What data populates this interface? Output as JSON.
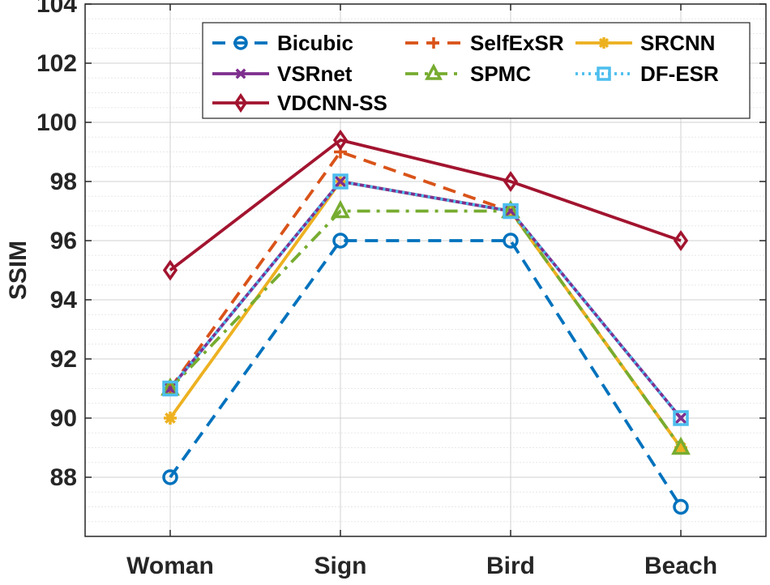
{
  "chart_data": {
    "type": "line",
    "title": "",
    "xlabel": "",
    "ylabel": "SSIM",
    "categories": [
      "Woman",
      "Sign",
      "Bird",
      "Beach"
    ],
    "ylim": [
      86,
      104
    ],
    "yticks": [
      88,
      90,
      92,
      94,
      96,
      98,
      100,
      102,
      104
    ],
    "grid": true,
    "legend_position": "top-right",
    "series": [
      {
        "name": "Bicubic",
        "values": [
          88,
          96,
          96,
          87
        ],
        "color": "#0072BD",
        "dash": "dashed",
        "marker": "circle"
      },
      {
        "name": "SelfExSR",
        "values": [
          91,
          99,
          97,
          89
        ],
        "color": "#D95319",
        "dash": "dashed",
        "marker": "plus"
      },
      {
        "name": "SRCNN",
        "values": [
          90,
          98,
          97,
          89
        ],
        "color": "#EDB120",
        "dash": "solid",
        "marker": "asterisk"
      },
      {
        "name": "VSRnet",
        "values": [
          91,
          98,
          97,
          90
        ],
        "color": "#7E2F8E",
        "dash": "solid",
        "marker": "x"
      },
      {
        "name": "SPMC",
        "values": [
          91,
          97,
          97,
          89
        ],
        "color": "#77AC30",
        "dash": "dashdot",
        "marker": "triangle"
      },
      {
        "name": "DF-ESR",
        "values": [
          91,
          98,
          97,
          90
        ],
        "color": "#4DBEEE",
        "dash": "dotted",
        "marker": "square"
      },
      {
        "name": "VDCNN-SS",
        "values": [
          95,
          99.4,
          98,
          96
        ],
        "color": "#A2142F",
        "dash": "solid",
        "marker": "diamond"
      }
    ]
  }
}
